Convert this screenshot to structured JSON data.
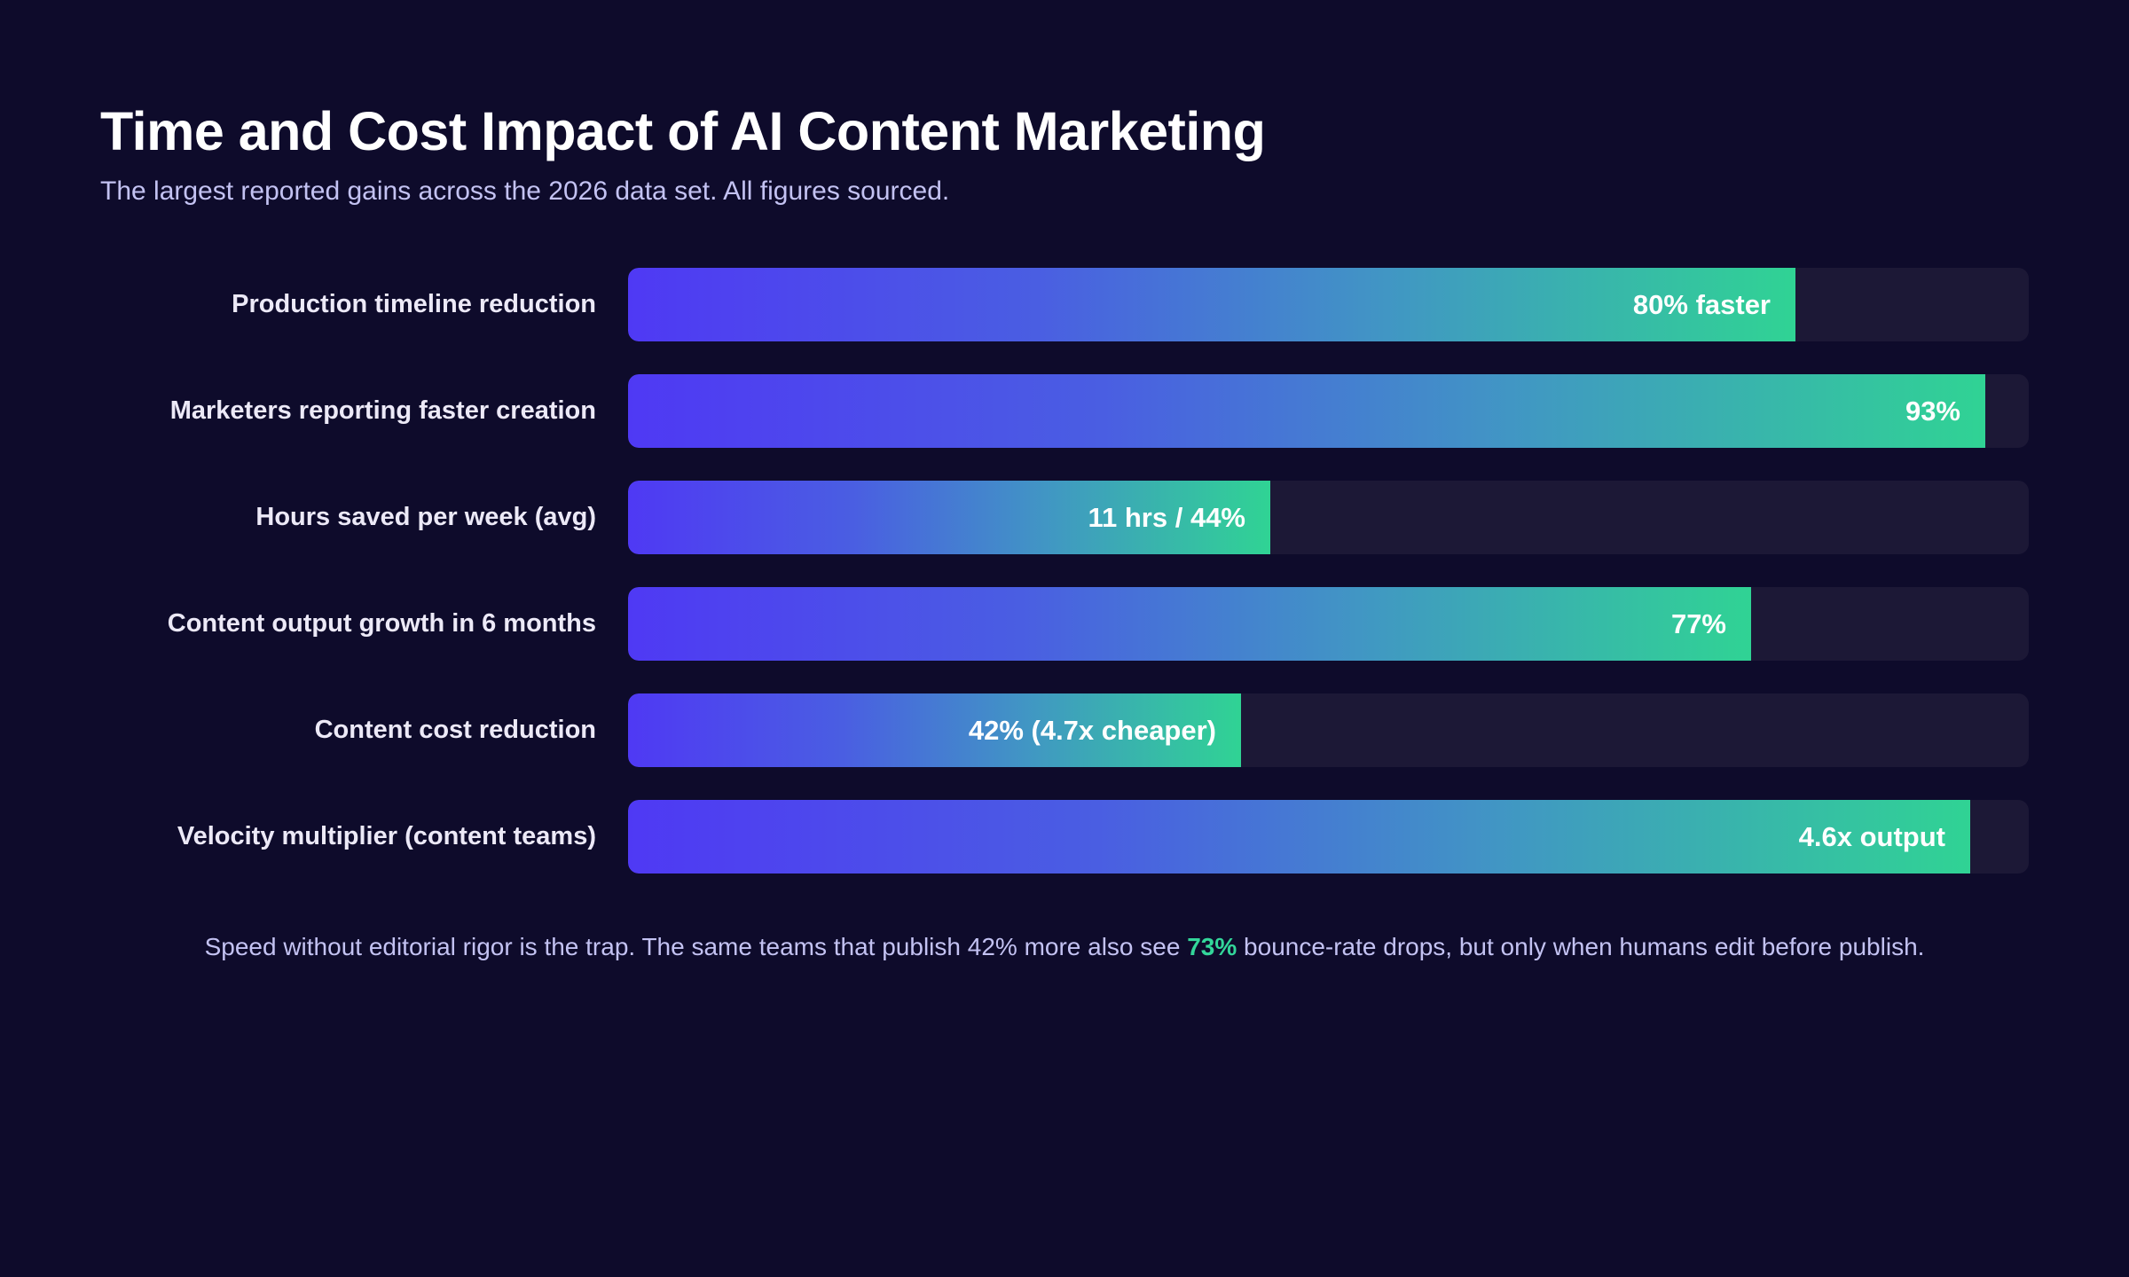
{
  "header": {
    "title": "Time and Cost Impact of AI Content Marketing",
    "subtitle": "The largest reported gains across the 2026 data set. All figures sourced."
  },
  "chart_data": {
    "type": "bar",
    "orientation": "horizontal",
    "title": "Time and Cost Impact of AI Content Marketing",
    "subtitle": "The largest reported gains across the 2026 data set. All figures sourced.",
    "categories": [
      "Production timeline reduction",
      "Marketers reporting faster creation",
      "Hours saved per week (avg)",
      "Content output growth in 6 months",
      "Content cost reduction",
      "Velocity multiplier (content teams)"
    ],
    "values": [
      80,
      93,
      44,
      77,
      42,
      92
    ],
    "value_labels": [
      "80% faster",
      "93%",
      "11 hrs / 44%",
      "77%",
      "42% (4.7x cheaper)",
      "4.6x output"
    ],
    "xlim": [
      0,
      96
    ],
    "grid": false,
    "colors": {
      "bar_start": "#4f39f4",
      "bar_end": "#30d394",
      "track": "#1c1836",
      "background": "#0e0b2b",
      "highlight": "#33d69a"
    }
  },
  "footnote": {
    "before": "Speed without editorial rigor is the trap. The same teams that publish 42% more also see ",
    "highlight": "73%",
    "after": " bounce-rate drops, but only when humans edit before publish."
  }
}
